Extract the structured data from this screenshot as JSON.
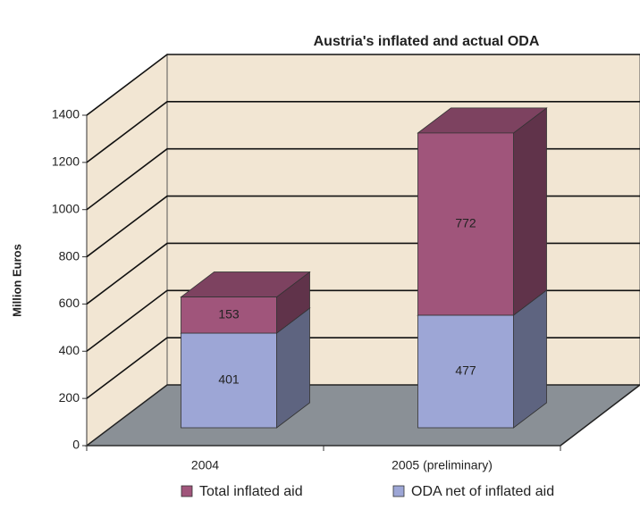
{
  "chart_data": {
    "type": "bar3d_stacked",
    "title": "Austria's inflated and actual ODA",
    "y_label": "Million Euros",
    "categories": [
      "2004",
      "2005  (preliminary)"
    ],
    "series": [
      {
        "name": "ODA net of inflated aid",
        "color": "#9da6d6",
        "values": [
          401,
          477
        ]
      },
      {
        "name": "Total inflated aid",
        "color": "#a0557b",
        "values": [
          153,
          772
        ]
      }
    ],
    "ylim": [
      0,
      1400
    ],
    "yticks": [
      0,
      200,
      400,
      600,
      800,
      1000,
      1200,
      1400
    ],
    "grid": true
  }
}
